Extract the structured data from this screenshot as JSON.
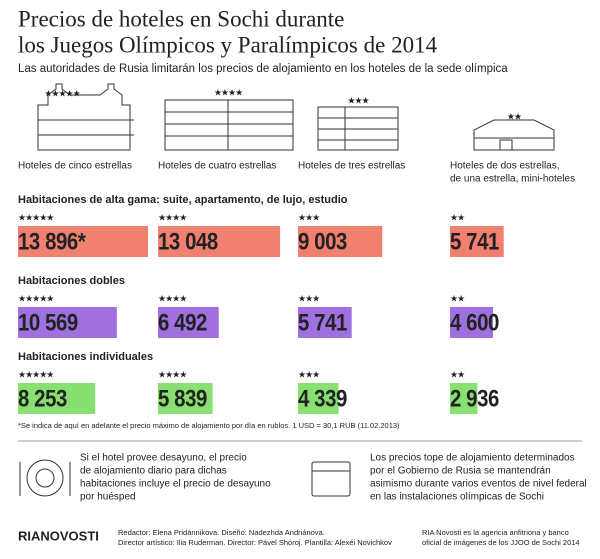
{
  "title": [
    "Precios de hoteles en Sochi durante",
    "los Juegos Olímpicos y Paralímpicos de 2014"
  ],
  "subtitle": "Las autoridades de Rusia limitarán los precios de alojamiento en los hoteles de la sede olímpica",
  "hotels": [
    {
      "stars": "★★★★★",
      "label": [
        "Hoteles de cinco estrellas"
      ]
    },
    {
      "stars": "★★★★",
      "label": [
        "Hoteles de cuatro estrellas"
      ]
    },
    {
      "stars": "★★★",
      "label": [
        "Hoteles de tres estrellas"
      ]
    },
    {
      "stars": "★★",
      "label": [
        "Hoteles de dos estrellas,",
        "de una estrella, mini-hoteles"
      ]
    }
  ],
  "sections": [
    {
      "title": "Habitaciones de alta gama: suite, apartamento, de lujo, estudio",
      "color": "#f08070",
      "items": [
        {
          "stars": "★★★★★",
          "value": 13896,
          "label": "13 896*"
        },
        {
          "stars": "★★★★",
          "value": 13048,
          "label": "13 048"
        },
        {
          "stars": "★★★",
          "value": 9003,
          "label": "9 003"
        },
        {
          "stars": "★★",
          "value": 5741,
          "label": "5 741"
        }
      ]
    },
    {
      "title": "Habitaciones dobles",
      "color": "#a070e0",
      "items": [
        {
          "stars": "★★★★★",
          "value": 10569,
          "label": "10 569"
        },
        {
          "stars": "★★★★",
          "value": 6492,
          "label": "6 492"
        },
        {
          "stars": "★★★",
          "value": 5741,
          "label": "5 741"
        },
        {
          "stars": "★★",
          "value": 4600,
          "label": "4 600"
        }
      ]
    },
    {
      "title": "Habitaciones individuales",
      "color": "#88e070",
      "items": [
        {
          "stars": "★★★★★",
          "value": 8253,
          "label": "8 253"
        },
        {
          "stars": "★★★★",
          "value": 5839,
          "label": "5 839"
        },
        {
          "stars": "★★★",
          "value": 4339,
          "label": "4 339"
        },
        {
          "stars": "★★",
          "value": 2936,
          "label": "2 936"
        }
      ]
    }
  ],
  "footnote": "*Se indica de aquí en adelante el precio máximo de alojamiento por día en rublos. 1 USD = 30,1 RUB (11.02.2013)",
  "notes": [
    [
      "Si el hotel provee desayuno, el precio",
      "de alojamiento diario para dichas",
      "habitaciones incluye el precio de desayuno",
      "por huésped"
    ],
    [
      "Los precios tope de alojamiento determinados",
      "por el Gobierno de Rusia se mantendrán",
      "asimismo durante varios eventos de nivel federal",
      "en las instalaciones olímpicas de Sochi"
    ]
  ],
  "footer": {
    "logo": "RIANOVOSTI",
    "credits": [
      "Redactor: Elena Pridánnikova. Diseño: Nadezhda Andriánova.",
      "Director artístico: Ilia Ruderman. Director: Pável Shóroj. Plantilla: Alexéi Novichkov"
    ],
    "agency": [
      "RIA Novosti es la agencia anfitriona y banco",
      "oficial de imágenes de los JJOO de Sochi 2014"
    ]
  }
}
